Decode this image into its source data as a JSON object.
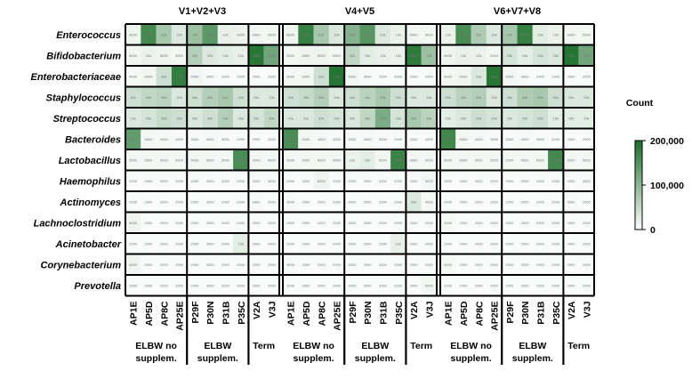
{
  "chart_data": {
    "type": "heatmap",
    "legend_title": "Count",
    "legend_ticks": [
      {
        "value": 200000,
        "label": "200,000"
      },
      {
        "value": 100000,
        "label": "100,000"
      },
      {
        "value": 0,
        "label": "0"
      }
    ],
    "scale_max": 200000,
    "color_low": "#ffffff",
    "color_high": "#1b6e2a",
    "regions": [
      "V1+V2+V3",
      "V4+V5",
      "V6+V7+V8"
    ],
    "taxa": [
      "Enterococcus",
      "Bifidobacterium",
      "Enterobacteriaceae",
      "Staphylococcus",
      "Streptococcus",
      "Bacteroides",
      "Lactobacillus",
      "Haemophilus",
      "Actinomyces",
      "Lachnoclostridium",
      "Acinetobacter",
      "Corynebacterium",
      "Prevotella"
    ],
    "samples": [
      "AP1E",
      "AP5D",
      "AP8C",
      "AP25E",
      "P29F",
      "P30N",
      "P31B",
      "P35C",
      "V2A",
      "V3J"
    ],
    "groups": [
      {
        "label_lines": [
          "ELBW no",
          "supplem."
        ],
        "samples": 4
      },
      {
        "label_lines": [
          "ELBW",
          "supplem."
        ],
        "samples": 4
      },
      {
        "label_lines": [
          "Term"
        ],
        "samples": 2
      }
    ],
    "values": [
      [
        [
          8000,
          155000,
          60000,
          20000,
          70000,
          130000,
          12000,
          9000,
          6000,
          5000
        ],
        [
          6000,
          10000,
          8000,
          5000,
          50000,
          20000,
          15000,
          12000,
          185000,
          110000
        ],
        [
          4000,
          6000,
          30000,
          175000,
          5000,
          3000,
          2000,
          2000,
          2000,
          2000
        ],
        [
          30000,
          40000,
          45000,
          20000,
          30000,
          50000,
          60000,
          30000,
          20000,
          20000
        ],
        [
          20000,
          25000,
          35000,
          30000,
          20000,
          30000,
          50000,
          20000,
          25000,
          40000
        ],
        [
          125000,
          5000,
          4000,
          3000,
          3000,
          4000,
          3000,
          2000,
          2000,
          2000
        ],
        [
          5000,
          5000,
          5000,
          5000,
          5000,
          5000,
          5000,
          150000,
          5000,
          5000
        ],
        [
          2000,
          2000,
          3000,
          2000,
          2000,
          2000,
          2000,
          2000,
          2000,
          3000
        ],
        [
          2000,
          2000,
          2000,
          2000,
          2000,
          2000,
          2000,
          2000,
          3000,
          2000
        ],
        [
          8000,
          2000,
          2000,
          2000,
          2000,
          2000,
          2000,
          2000,
          2000,
          2000
        ],
        [
          2000,
          2000,
          2000,
          2000,
          2000,
          2000,
          2000,
          15000,
          2000,
          2000
        ],
        [
          6000,
          2000,
          2000,
          2000,
          2000,
          2000,
          2000,
          2000,
          2000,
          2000
        ],
        [
          2000,
          2000,
          2000,
          2000,
          2000,
          2000,
          2000,
          2000,
          2000,
          2000
        ]
      ],
      [
        [
          8000,
          170000,
          60000,
          20000,
          90000,
          135000,
          20000,
          10000,
          6000,
          5000
        ],
        [
          5000,
          8000,
          8000,
          5000,
          40000,
          15000,
          12000,
          10000,
          180000,
          70000
        ],
        [
          5000,
          5000,
          30000,
          190000,
          5000,
          3000,
          2000,
          2000,
          2000,
          2000
        ],
        [
          30000,
          35000,
          50000,
          20000,
          30000,
          45000,
          60000,
          30000,
          20000,
          20000
        ],
        [
          20000,
          20000,
          30000,
          25000,
          20000,
          40000,
          100000,
          25000,
          60000,
          45000
        ],
        [
          150000,
          5000,
          4000,
          3000,
          3000,
          4000,
          3000,
          2000,
          2000,
          2000
        ],
        [
          5000,
          5000,
          5000,
          5000,
          10000,
          15000,
          5000,
          165000,
          5000,
          5000
        ],
        [
          2000,
          2000,
          8000,
          2000,
          2000,
          2000,
          2000,
          2000,
          2000,
          5000
        ],
        [
          3000,
          2000,
          2000,
          2000,
          2000,
          2000,
          2000,
          2000,
          20000,
          4000
        ],
        [
          2000,
          2000,
          2000,
          2000,
          2000,
          2000,
          2000,
          2000,
          2000,
          2000
        ],
        [
          2000,
          2000,
          2000,
          2000,
          2000,
          2000,
          2000,
          12000,
          2000,
          2000
        ],
        [
          3000,
          2000,
          2000,
          2000,
          2000,
          2000,
          2000,
          2000,
          2000,
          2000
        ],
        [
          2000,
          2000,
          2000,
          2000,
          2000,
          2000,
          2000,
          2000,
          2000,
          5000
        ]
      ],
      [
        [
          10000,
          150000,
          55000,
          20000,
          60000,
          170000,
          15000,
          10000,
          6000,
          5000
        ],
        [
          8000,
          12000,
          10000,
          5000,
          25000,
          15000,
          25000,
          20000,
          190000,
          110000
        ],
        [
          5000,
          6000,
          20000,
          185000,
          5000,
          3000,
          2000,
          2000,
          2000,
          2000
        ],
        [
          30000,
          45000,
          50000,
          20000,
          30000,
          55000,
          60000,
          30000,
          20000,
          20000
        ],
        [
          15000,
          20000,
          30000,
          25000,
          20000,
          25000,
          30000,
          15000,
          15000,
          15000
        ],
        [
          160000,
          5000,
          4000,
          3000,
          3000,
          4000,
          3000,
          2000,
          2000,
          2000
        ],
        [
          5000,
          5000,
          5000,
          5000,
          5000,
          5000,
          5000,
          155000,
          5000,
          5000
        ],
        [
          2000,
          2000,
          2000,
          2000,
          2000,
          2000,
          2000,
          2000,
          2000,
          3000
        ],
        [
          2000,
          2000,
          2000,
          2000,
          2000,
          2000,
          2000,
          2000,
          3000,
          2000
        ],
        [
          4000,
          2000,
          2000,
          2000,
          2000,
          2000,
          2000,
          2000,
          2000,
          2000
        ],
        [
          2000,
          2000,
          2000,
          2000,
          2000,
          2000,
          2000,
          2000,
          2000,
          2000
        ],
        [
          4000,
          2000,
          2000,
          2000,
          2000,
          2000,
          2000,
          2000,
          2000,
          2000
        ],
        [
          2000,
          2000,
          2000,
          2000,
          2000,
          2000,
          2000,
          2000,
          2000,
          2000
        ]
      ]
    ]
  }
}
